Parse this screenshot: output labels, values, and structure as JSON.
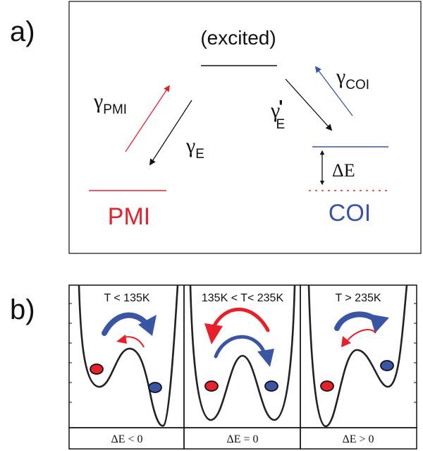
{
  "panel_a": {
    "label": "a)",
    "excited_label": "(excited)",
    "pmi": {
      "label": "PMI",
      "color": "#e8202a"
    },
    "coi": {
      "label": "COI",
      "color": "#3a55a4"
    },
    "rates": {
      "gamma_symbol": "γ",
      "pmi_sub": "PMI",
      "e_sub": "E",
      "coi_sub": "COI",
      "e_prime_sub": "E",
      "prime": "'"
    },
    "delta_e": "ΔE"
  },
  "panel_b": {
    "label": "b)",
    "panels": [
      {
        "temp_label": "T < 135K",
        "delta_label": "ΔE < 0"
      },
      {
        "temp_label": "135K < T< 235K",
        "delta_label": "ΔE = 0"
      },
      {
        "temp_label": "T > 235K",
        "delta_label": "ΔE > 0"
      }
    ],
    "colors": {
      "red": "#e8202a",
      "blue": "#3a55a4",
      "curve": "#222222"
    }
  }
}
